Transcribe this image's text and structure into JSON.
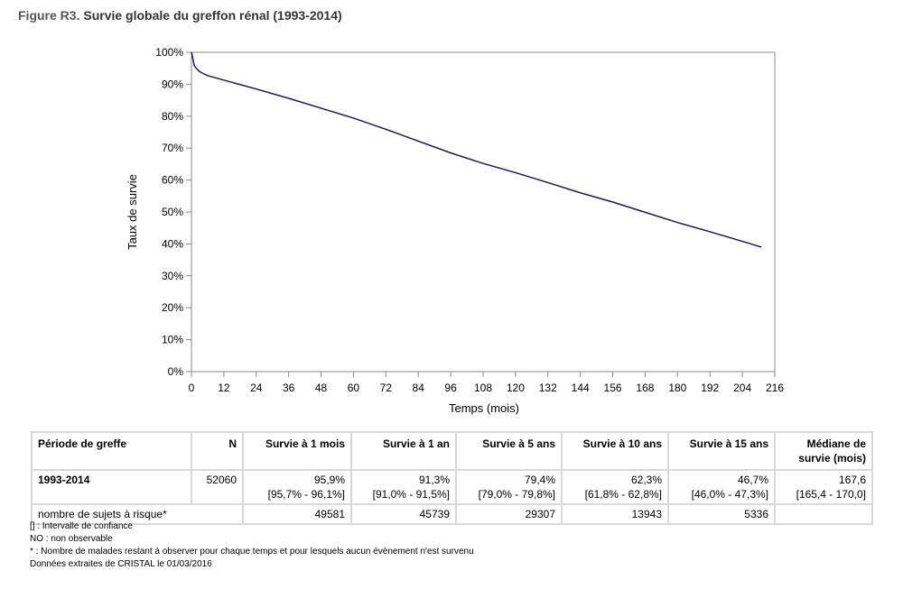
{
  "figure": {
    "label": "Figure R3.",
    "title": "Survie globale du greffon rénal (1993-2014)"
  },
  "chart_data": {
    "type": "line",
    "xlabel": "Temps (mois)",
    "ylabel": "Taux de survie",
    "xlim": [
      0,
      216
    ],
    "ylim": [
      0,
      100
    ],
    "xticks": [
      0,
      12,
      24,
      36,
      48,
      60,
      72,
      84,
      96,
      108,
      120,
      132,
      144,
      156,
      168,
      180,
      192,
      204,
      216
    ],
    "yticks": [
      0,
      10,
      20,
      30,
      40,
      50,
      60,
      70,
      80,
      90,
      100
    ],
    "ytick_labels": [
      "0%",
      "10%",
      "20%",
      "30%",
      "40%",
      "50%",
      "60%",
      "70%",
      "80%",
      "90%",
      "100%"
    ],
    "grid": false,
    "line_color": "#1f1a4d",
    "series": [
      {
        "x": [
          0,
          0.3,
          1,
          2,
          3,
          4,
          6,
          9,
          12,
          18,
          24,
          36,
          48,
          60,
          72,
          84,
          96,
          108,
          120,
          132,
          144,
          156,
          168,
          180,
          192,
          204,
          211
        ],
        "y": [
          100,
          99,
          95.9,
          94.8,
          94,
          93.5,
          92.7,
          92,
          91.3,
          89.9,
          88.5,
          85.6,
          82.5,
          79.4,
          75.9,
          72.2,
          68.5,
          65.2,
          62.3,
          59.2,
          56.0,
          53.1,
          49.9,
          46.7,
          43.8,
          40.8,
          39
        ]
      }
    ]
  },
  "table": {
    "headers": [
      "Période de greffe",
      "N",
      "Survie à 1 mois",
      "Survie à 1 an",
      "Survie à 5 ans",
      "Survie à 10 ans",
      "Survie à 15 ans",
      "Médiane de survie (mois)"
    ],
    "header_lines": {
      "median_line1": "Médiane de",
      "median_line2": "survie (mois)"
    },
    "row1": {
      "periode": "1993-2014",
      "n": "52060",
      "values": [
        "95,9%",
        "91,3%",
        "79,4%",
        "62,3%",
        "46,7%",
        "167,6"
      ],
      "ci": [
        "[95,7% - 96,1%]",
        "[91,0% - 91,5%]",
        "[79,0% - 79,8%]",
        "[61,8% - 62,8%]",
        "[46,0% - 47,3%]",
        "[165,4 - 170,0]"
      ]
    },
    "row2": {
      "label": "nombre de sujets à risque*",
      "values": [
        "49581",
        "45739",
        "29307",
        "13943",
        "5336"
      ]
    }
  },
  "notes": [
    "[] : Intervalle de confiance",
    "NO : non observable",
    "* : Nombre de malades restant à observer pour chaque temps et pour lesquels aucun évènement n'est survenu",
    "Données extraites de CRISTAL le 01/03/2016"
  ]
}
